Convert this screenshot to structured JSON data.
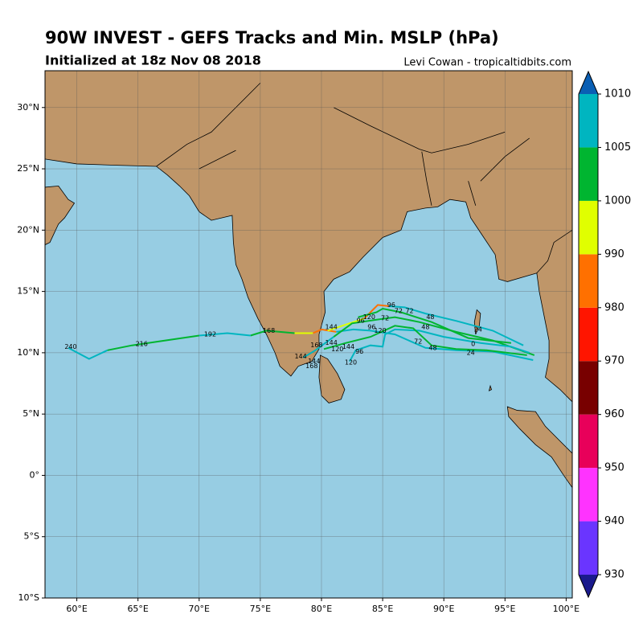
{
  "title": "90W INVEST - GEFS Tracks and Min. MSLP (hPa)",
  "subtitle": "Initialized at 18z Nov 08 2018",
  "credit": "Levi Cowan - tropicaltidbits.com",
  "map": {
    "lon_range": [
      57.4,
      100.5
    ],
    "lat_range": [
      -10,
      33
    ],
    "lon_ticks": [
      {
        "value": 60,
        "label": "60°E"
      },
      {
        "value": 65,
        "label": "65°E"
      },
      {
        "value": 70,
        "label": "70°E"
      },
      {
        "value": 75,
        "label": "75°E"
      },
      {
        "value": 80,
        "label": "80°E"
      },
      {
        "value": 85,
        "label": "85°E"
      },
      {
        "value": 90,
        "label": "90°E"
      },
      {
        "value": 95,
        "label": "95°E"
      },
      {
        "value": 100,
        "label": "100°E"
      }
    ],
    "lat_ticks": [
      {
        "value": 30,
        "label": "30°N"
      },
      {
        "value": 25,
        "label": "25°N"
      },
      {
        "value": 20,
        "label": "20°N"
      },
      {
        "value": 15,
        "label": "15°N"
      },
      {
        "value": 10,
        "label": "10°N"
      },
      {
        "value": 5,
        "label": "5°N"
      },
      {
        "value": 0,
        "label": "0°"
      },
      {
        "value": -5,
        "label": "5°S"
      },
      {
        "value": -10,
        "label": "10°S"
      }
    ]
  },
  "colorbar": {
    "levels": [
      930,
      940,
      950,
      960,
      970,
      980,
      990,
      1000,
      1005,
      1010
    ],
    "colors": [
      "#6a35ff",
      "#ff33ff",
      "#e8005a",
      "#780000",
      "#ff1500",
      "#ff7000",
      "#e0ff00",
      "#00b530",
      "#00b5c0"
    ],
    "under_color": "#1a1a8c",
    "over_color": "#0a5fb4"
  },
  "tracks": [
    {
      "pieces": [
        {
          "color": "#00b5c0",
          "lons": [
            97.3,
            94,
            91,
            88.5,
            86,
            84,
            82.6,
            81.2
          ],
          "lats": [
            9.4,
            10.1,
            10.2,
            10.4,
            11.5,
            11.8,
            11.9,
            11.7
          ]
        },
        {
          "color": "#ff7000",
          "lons": [
            81.2,
            80,
            79.3
          ],
          "lats": [
            11.7,
            11.9,
            11.6
          ]
        },
        {
          "color": "#e0ff00",
          "lons": [
            79.3,
            77.8
          ],
          "lats": [
            11.6,
            11.6
          ]
        },
        {
          "color": "#00b530",
          "lons": [
            77.8,
            75.5,
            74.2
          ],
          "lats": [
            11.6,
            11.8,
            11.4
          ]
        },
        {
          "color": "#00b5c0",
          "lons": [
            74.2,
            72.3,
            70
          ],
          "lats": [
            11.4,
            11.6,
            11.4
          ]
        },
        {
          "color": "#00b530",
          "lons": [
            70,
            66.5,
            64.5,
            62.5
          ],
          "lats": [
            11.4,
            10.9,
            10.6,
            10.2
          ]
        },
        {
          "color": "#00b5c0",
          "lons": [
            62.5,
            61,
            59.3
          ],
          "lats": [
            10.2,
            9.5,
            10.4
          ]
        }
      ]
    },
    {
      "pieces": [
        {
          "color": "#00b5c0",
          "lons": [
            96.5,
            94,
            91,
            88.5,
            86.8,
            85.5
          ],
          "lats": [
            10.6,
            11.8,
            12.6,
            13.2,
            13.7,
            13.8
          ]
        },
        {
          "color": "#ff7000",
          "lons": [
            85.5,
            84.6,
            84.2,
            83.5
          ],
          "lats": [
            13.8,
            13.9,
            13.5,
            12.8
          ]
        },
        {
          "color": "#e0ff00",
          "lons": [
            83.5,
            82,
            80.5
          ],
          "lats": [
            12.8,
            12.3,
            11.8
          ]
        }
      ]
    },
    {
      "pieces": [
        {
          "color": "#00b530",
          "lons": [
            97.4,
            94,
            91,
            88,
            86,
            84.5,
            82.5,
            81
          ],
          "lats": [
            9.8,
            11,
            11.7,
            12.5,
            12.9,
            12.7,
            12.4,
            11.3
          ]
        },
        {
          "color": "#00b5c0",
          "lons": [
            81,
            79.5,
            78.5
          ],
          "lats": [
            11.3,
            10.2,
            9.6
          ]
        }
      ]
    },
    {
      "pieces": [
        {
          "color": "#00b5c0",
          "lons": [
            97,
            95.5,
            93,
            90,
            88,
            86,
            85.2,
            85,
            84,
            82.8,
            82.3
          ],
          "lats": [
            10,
            10.5,
            10.8,
            11.3,
            11.8,
            11.9,
            11.5,
            10.5,
            10.6,
            10.2,
            9.3
          ]
        }
      ]
    },
    {
      "pieces": [
        {
          "color": "#00b530",
          "lons": [
            96.8,
            93.5,
            91,
            89,
            87.5,
            86,
            84,
            82,
            80.2
          ],
          "lats": [
            9.8,
            10.2,
            10.3,
            10.6,
            12,
            12.2,
            11.3,
            10.8,
            10.3
          ]
        }
      ]
    },
    {
      "pieces": [
        {
          "color": "#00b530",
          "lons": [
            95.5,
            92,
            89,
            86.5,
            85,
            84.5,
            83
          ],
          "lats": [
            10.8,
            11.2,
            12.5,
            13.3,
            13.6,
            13.3,
            12.9
          ]
        }
      ]
    }
  ],
  "hour_labels": [
    {
      "hour": 240,
      "lon": 59.5,
      "lat": 10.5
    },
    {
      "hour": 216,
      "lon": 65.3,
      "lat": 10.7
    },
    {
      "hour": 192,
      "lon": 70.9,
      "lat": 11.5
    },
    {
      "hour": 168,
      "lon": 75.7,
      "lat": 11.8
    },
    {
      "hour": 144,
      "lon": 80.8,
      "lat": 12.1
    },
    {
      "hour": 120,
      "lon": 83.9,
      "lat": 12.9
    },
    {
      "hour": 96,
      "lon": 85.7,
      "lat": 13.9
    },
    {
      "hour": 72,
      "lon": 86.3,
      "lat": 13.4
    },
    {
      "hour": 72,
      "lon": 87.2,
      "lat": 13.4
    },
    {
      "hour": 48,
      "lon": 88.9,
      "lat": 12.9
    },
    {
      "hour": 48,
      "lon": 88.5,
      "lat": 12.1
    },
    {
      "hour": 24,
      "lon": 92.8,
      "lat": 11.9
    },
    {
      "hour": 72,
      "lon": 85.2,
      "lat": 12.8
    },
    {
      "hour": 96,
      "lon": 83.2,
      "lat": 12.6
    },
    {
      "hour": 96,
      "lon": 84.1,
      "lat": 12.1
    },
    {
      "hour": 120,
      "lon": 84.8,
      "lat": 11.8
    },
    {
      "hour": 144,
      "lon": 80.8,
      "lat": 10.8
    },
    {
      "hour": 168,
      "lon": 79.6,
      "lat": 10.6
    },
    {
      "hour": 120,
      "lon": 81.3,
      "lat": 10.3
    },
    {
      "hour": 144,
      "lon": 82.2,
      "lat": 10.5
    },
    {
      "hour": 96,
      "lon": 83.1,
      "lat": 10.1
    },
    {
      "hour": 72,
      "lon": 87.9,
      "lat": 10.9
    },
    {
      "hour": 48,
      "lon": 89.1,
      "lat": 10.4
    },
    {
      "hour": 24,
      "lon": 92.2,
      "lat": 10.0
    },
    {
      "hour": 0,
      "lon": 92.4,
      "lat": 10.7
    },
    {
      "hour": 144,
      "lon": 78.3,
      "lat": 9.7
    },
    {
      "hour": 144,
      "lon": 79.4,
      "lat": 9.3
    },
    {
      "hour": 168,
      "lon": 79.2,
      "lat": 8.9
    },
    {
      "hour": 120,
      "lon": 82.4,
      "lat": 9.2
    }
  ]
}
